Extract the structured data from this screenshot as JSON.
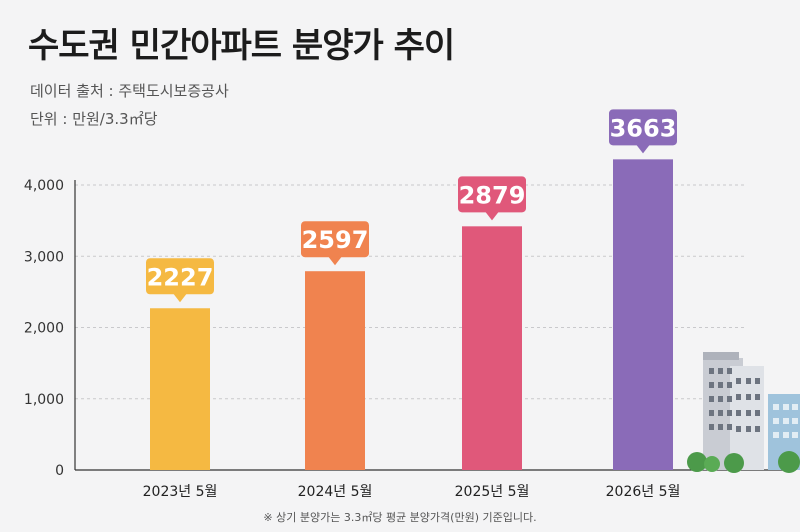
{
  "header": {
    "title": "수도권 민간아파트 분양가 추이",
    "source": "데이터 출처 : 주택도시보증공사",
    "unit": "단위 : 만원/3.3㎡당"
  },
  "footnote": "※ 상기 분양가는 3.3㎡당 평균 분양가격(만원) 기준입니다.",
  "chart_data": {
    "type": "bar",
    "categories": [
      "2023년 5월",
      "2024년 5월",
      "2025년 5월",
      "2026년 5월"
    ],
    "values": [
      2227,
      2597,
      2879,
      3663
    ],
    "data_labels": [
      "2227",
      "2597",
      "2879",
      "3663"
    ],
    "bar_colors": [
      "#f5b942",
      "#f0834f",
      "#e0587a",
      "#8a6bb8"
    ],
    "bar_heights_on_axis": [
      2270,
      2790,
      3420,
      4360
    ],
    "yticks": [
      0,
      1000,
      2000,
      3000,
      4000
    ],
    "ytick_labels": [
      "0",
      "1,000",
      "2,000",
      "3,000",
      "4,000"
    ],
    "ylim": [
      0,
      4000
    ],
    "grid": true,
    "legend": "none"
  }
}
